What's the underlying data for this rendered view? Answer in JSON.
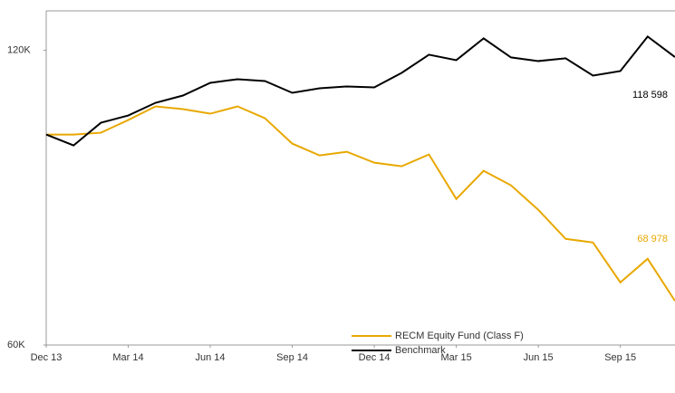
{
  "chart_data": {
    "type": "line",
    "categories": [
      "Dec 13",
      null,
      null,
      "Mar 14",
      null,
      null,
      "Jun 14",
      null,
      null,
      "Sep 14",
      null,
      null,
      "Dec 14",
      null,
      null,
      "Mar 15",
      null,
      null,
      "Jun 15",
      null,
      null,
      "Sep 15",
      null,
      null
    ],
    "series": [
      {
        "name": "RECM Equity Fund (Class F)",
        "color": "#e8a800",
        "values": [
          102832,
          102832,
          103200,
          105786,
          108555,
          108000,
          107078,
          108555,
          106155,
          100986,
          98586,
          99325,
          97109,
          96371,
          98771,
          89725,
          95448,
          92494,
          87510,
          81603,
          80865,
          72742,
          77542,
          68978
        ],
        "value_labels": [
          null,
          null,
          null,
          null,
          null,
          null,
          null,
          null,
          null,
          null,
          null,
          null,
          null,
          null,
          null,
          null,
          null,
          null,
          null,
          null,
          null,
          null,
          null,
          "68 978"
        ]
      },
      {
        "name": "Benchmark",
        "color": "#000000",
        "values": [
          102832,
          100617,
          105232,
          106708,
          109293,
          110770,
          113354,
          114093,
          113724,
          111323,
          112247,
          112616,
          112431,
          115385,
          119077,
          117969,
          122400,
          118523,
          117785,
          118339,
          114831,
          115754,
          122769,
          118598
        ],
        "value_labels": [
          null,
          null,
          null,
          null,
          null,
          null,
          null,
          null,
          null,
          null,
          null,
          null,
          null,
          null,
          null,
          null,
          null,
          null,
          null,
          null,
          null,
          null,
          null,
          "118 598"
        ]
      }
    ],
    "ylim": [
      60000,
      128000
    ],
    "yticks": [
      {
        "value": 60000,
        "label": "60K"
      },
      {
        "value": 120000,
        "label": "120K"
      }
    ]
  }
}
